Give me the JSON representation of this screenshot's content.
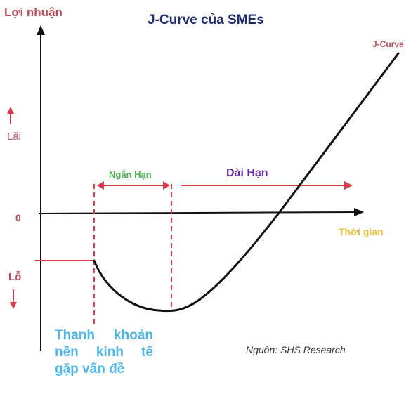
{
  "title": "J-Curve của SMEs",
  "y_axis": {
    "label": "Lợi nhuận",
    "profit": "Lãi",
    "loss": "Lỗ",
    "zero": "0"
  },
  "x_axis": {
    "label": "Thời gian"
  },
  "curve": {
    "label": "J-Curve"
  },
  "phases": {
    "short": "Ngắn Hạn",
    "long": "Dài Hạn"
  },
  "note": {
    "line1": "Thanh khoản",
    "line2": "nền kinh tế",
    "line3": "gặp vấn đề"
  },
  "source": "Nguồn: SHS Research",
  "colors": {
    "title": "#1f2d6b",
    "label_red": "#b5505e",
    "arrow_red": "#d93a4a",
    "short_green": "#4caf50",
    "long_purple": "#6a2fa8",
    "time_yellow": "#e8c24a",
    "note_blue": "#4fb7e8",
    "axis": "#111111"
  }
}
